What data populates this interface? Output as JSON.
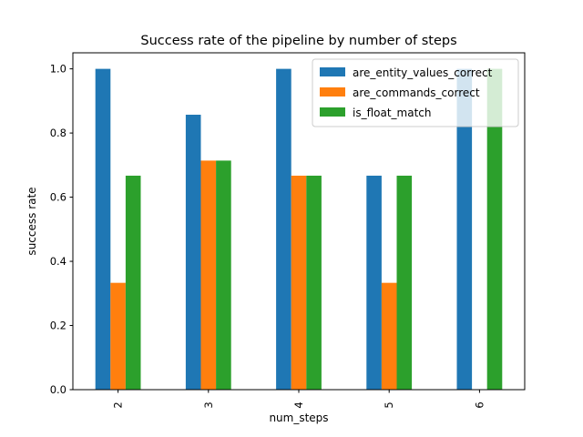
{
  "chart_data": {
    "type": "bar",
    "title": "Success rate of the pipeline by number of steps",
    "xlabel": "num_steps",
    "ylabel": "success rate",
    "categories": [
      "2",
      "3",
      "4",
      "5",
      "6"
    ],
    "ylim": [
      0,
      1.05
    ],
    "yticks": [
      0.0,
      0.2,
      0.4,
      0.6,
      0.8,
      1.0
    ],
    "ytick_labels": [
      "0.0",
      "0.2",
      "0.4",
      "0.6",
      "0.8",
      "1.0"
    ],
    "grid": false,
    "legend_position": "top-right",
    "series": [
      {
        "name": "are_entity_values_correct",
        "color": "#1f77b4",
        "values": [
          1.0,
          0.857,
          1.0,
          0.667,
          1.0
        ]
      },
      {
        "name": "are_commands_correct",
        "color": "#ff7f0e",
        "values": [
          0.333,
          0.714,
          0.667,
          0.333,
          0.0
        ]
      },
      {
        "name": "is_float_match",
        "color": "#2ca02c",
        "values": [
          0.667,
          0.714,
          0.667,
          0.667,
          1.0
        ]
      }
    ]
  }
}
